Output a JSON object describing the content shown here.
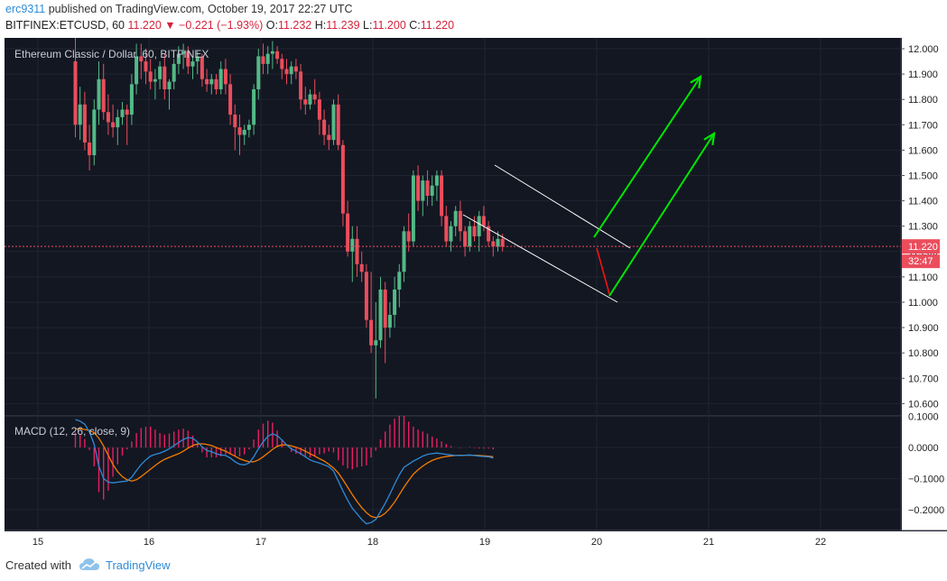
{
  "header": {
    "user": "erc9311",
    "published": "published on TradingView.com, October 19, 2017 22:27 UTC",
    "symbol": "BITFINEX:ETCUSD, 60",
    "last": "11.220",
    "change": "−0.221 (−1.93%)",
    "o_label": "O:",
    "o": "11.232",
    "h_label": "H:",
    "h": "11.239",
    "l_label": "L:",
    "l": "11.200",
    "c_label": "C:",
    "c": "11.220"
  },
  "footer": {
    "created": "Created with",
    "brand": "TradingView"
  },
  "colors": {
    "background": "#131722",
    "up": "#53b987",
    "down": "#eb4d5c",
    "macd_line": "#2e8bd8",
    "signal_line": "#f57c00",
    "hist": "#e91e63",
    "arrow": "#00e600",
    "channel": "#ffffff",
    "price_tag": "#eb4d5c"
  },
  "chart_data": [
    {
      "type": "candlestick",
      "title": "Ethereum Classic / Dollar, 60, BITFINEX",
      "x_ticks": [
        "15",
        "16",
        "17",
        "18",
        "19",
        "20",
        "21",
        "22"
      ],
      "y_ticks": [
        "12.000",
        "11.900",
        "11.800",
        "11.700",
        "11.600",
        "11.500",
        "11.400",
        "11.300",
        "11.200",
        "11.100",
        "11.000",
        "10.900",
        "10.800",
        "10.700",
        "10.600"
      ],
      "ylim": [
        10.57,
        12.03
      ],
      "last_price_label": "11.220",
      "countdown_label": "32:47",
      "ohlc": [
        [
          11.95,
          12.05,
          11.65,
          11.7
        ],
        [
          11.7,
          11.85,
          11.64,
          11.78
        ],
        [
          11.78,
          11.83,
          11.6,
          11.63
        ],
        [
          11.63,
          11.7,
          11.52,
          11.58
        ],
        [
          11.58,
          11.8,
          11.54,
          11.76
        ],
        [
          11.76,
          11.95,
          11.7,
          11.88
        ],
        [
          11.88,
          11.94,
          11.72,
          11.75
        ],
        [
          11.75,
          11.82,
          11.66,
          11.71
        ],
        [
          11.71,
          11.78,
          11.65,
          11.69
        ],
        [
          11.69,
          11.76,
          11.62,
          11.73
        ],
        [
          11.73,
          11.79,
          11.7,
          11.76
        ],
        [
          11.76,
          11.78,
          11.62,
          11.74
        ],
        [
          11.74,
          11.9,
          11.7,
          11.86
        ],
        [
          11.86,
          12.02,
          11.82,
          11.97
        ],
        [
          11.97,
          12.02,
          11.88,
          11.95
        ],
        [
          11.95,
          12.0,
          11.86,
          11.91
        ],
        [
          11.91,
          11.96,
          11.84,
          11.87
        ],
        [
          11.87,
          11.92,
          11.8,
          11.88
        ],
        [
          11.88,
          11.95,
          11.84,
          11.93
        ],
        [
          11.93,
          11.98,
          11.8,
          11.84
        ],
        [
          11.84,
          11.88,
          11.76,
          11.87
        ],
        [
          11.87,
          11.96,
          11.84,
          11.94
        ],
        [
          11.94,
          12.01,
          11.9,
          11.98
        ],
        [
          11.98,
          12.02,
          11.92,
          11.99
        ],
        [
          11.99,
          12.01,
          11.9,
          11.93
        ],
        [
          11.93,
          11.97,
          11.88,
          11.95
        ],
        [
          11.95,
          11.99,
          11.9,
          11.97
        ],
        [
          11.97,
          11.98,
          11.85,
          11.88
        ],
        [
          11.88,
          11.92,
          11.83,
          11.86
        ],
        [
          11.86,
          11.9,
          11.82,
          11.88
        ],
        [
          11.88,
          11.9,
          11.82,
          11.84
        ],
        [
          11.84,
          11.95,
          11.82,
          11.92
        ],
        [
          11.92,
          11.96,
          11.82,
          11.86
        ],
        [
          11.86,
          11.9,
          11.7,
          11.74
        ],
        [
          11.74,
          11.78,
          11.6,
          11.69
        ],
        [
          11.69,
          11.74,
          11.58,
          11.66
        ],
        [
          11.66,
          11.7,
          11.62,
          11.68
        ],
        [
          11.68,
          11.72,
          11.65,
          11.7
        ],
        [
          11.7,
          11.86,
          11.66,
          11.84
        ],
        [
          11.84,
          12.0,
          11.8,
          11.97
        ],
        [
          11.97,
          12.02,
          11.9,
          11.94
        ],
        [
          11.94,
          12.01,
          11.9,
          11.98
        ],
        [
          11.98,
          12.03,
          11.92,
          11.99
        ],
        [
          11.99,
          12.01,
          11.94,
          11.96
        ],
        [
          11.96,
          11.98,
          11.88,
          11.92
        ],
        [
          11.92,
          11.96,
          11.86,
          11.9
        ],
        [
          11.9,
          11.95,
          11.86,
          11.93
        ],
        [
          11.93,
          11.96,
          11.88,
          11.91
        ],
        [
          11.91,
          11.94,
          11.76,
          11.8
        ],
        [
          11.8,
          11.85,
          11.74,
          11.78
        ],
        [
          11.78,
          11.84,
          11.76,
          11.82
        ],
        [
          11.82,
          11.88,
          11.78,
          11.8
        ],
        [
          11.8,
          11.83,
          11.66,
          11.72
        ],
        [
          11.72,
          11.76,
          11.62,
          11.66
        ],
        [
          11.66,
          11.7,
          11.6,
          11.64
        ],
        [
          11.64,
          11.8,
          11.62,
          11.78
        ],
        [
          11.78,
          11.82,
          11.6,
          11.62
        ],
        [
          11.62,
          11.64,
          11.3,
          11.35
        ],
        [
          11.35,
          11.4,
          11.18,
          11.2
        ],
        [
          11.2,
          11.3,
          11.08,
          11.25
        ],
        [
          11.25,
          11.3,
          11.1,
          11.15
        ],
        [
          11.15,
          11.2,
          11.08,
          11.12
        ],
        [
          11.12,
          11.15,
          10.9,
          10.93
        ],
        [
          10.93,
          11.12,
          10.8,
          10.83
        ],
        [
          10.83,
          11.0,
          10.62,
          10.85
        ],
        [
          10.85,
          11.1,
          10.82,
          11.05
        ],
        [
          11.05,
          11.08,
          10.76,
          10.9
        ],
        [
          10.9,
          11.0,
          10.86,
          10.95
        ],
        [
          10.95,
          11.1,
          10.9,
          11.05
        ],
        [
          11.05,
          11.15,
          10.98,
          11.12
        ],
        [
          11.12,
          11.3,
          11.08,
          11.28
        ],
        [
          11.28,
          11.35,
          11.2,
          11.24
        ],
        [
          11.24,
          11.52,
          11.22,
          11.5
        ],
        [
          11.5,
          11.54,
          11.36,
          11.4
        ],
        [
          11.4,
          11.5,
          11.34,
          11.48
        ],
        [
          11.48,
          11.52,
          11.38,
          11.42
        ],
        [
          11.42,
          11.5,
          11.38,
          11.46
        ],
        [
          11.46,
          11.52,
          11.4,
          11.5
        ],
        [
          11.5,
          11.52,
          11.3,
          11.34
        ],
        [
          11.34,
          11.38,
          11.22,
          11.24
        ],
        [
          11.24,
          11.32,
          11.2,
          11.3
        ],
        [
          11.3,
          11.38,
          11.26,
          11.36
        ],
        [
          11.36,
          11.4,
          11.24,
          11.28
        ],
        [
          11.28,
          11.3,
          11.18,
          11.22
        ],
        [
          11.22,
          11.32,
          11.2,
          11.3
        ],
        [
          11.3,
          11.34,
          11.24,
          11.26
        ],
        [
          11.26,
          11.36,
          11.2,
          11.34
        ],
        [
          11.34,
          11.38,
          11.28,
          11.3
        ],
        [
          11.3,
          11.32,
          11.22,
          11.24
        ],
        [
          11.24,
          11.26,
          11.18,
          11.22
        ],
        [
          11.22,
          11.28,
          11.2,
          11.25
        ],
        [
          11.25,
          11.27,
          11.2,
          11.22
        ]
      ]
    },
    {
      "type": "line",
      "title": "MACD (12, 26, close, 9)",
      "y_ticks": [
        "0.1000",
        "0.0000",
        "−0.1000",
        "−0.2000"
      ],
      "ylim": [
        -0.255,
        0.105
      ],
      "series": [
        {
          "values": [
            0.09,
            0.085,
            0.075,
            0.05,
            0.01,
            -0.06,
            -0.1,
            -0.112,
            -0.114,
            -0.112,
            -0.11,
            -0.108,
            -0.096,
            -0.075,
            -0.055,
            -0.04,
            -0.028,
            -0.022,
            -0.018,
            -0.012,
            -0.004,
            0.006,
            0.016,
            0.026,
            0.032,
            0.03,
            0.018,
            0.002,
            -0.01,
            -0.014,
            -0.02,
            -0.024,
            -0.026,
            -0.034,
            -0.046,
            -0.054,
            -0.056,
            -0.05,
            -0.03,
            -0.004,
            0.018,
            0.036,
            0.044,
            0.038,
            0.024,
            0.008,
            -0.004,
            -0.012,
            -0.02,
            -0.03,
            -0.04,
            -0.046,
            -0.05,
            -0.056,
            -0.062,
            -0.076,
            -0.108,
            -0.14,
            -0.17,
            -0.196,
            -0.214,
            -0.232,
            -0.246,
            -0.242,
            -0.232,
            -0.206,
            -0.18,
            -0.15,
            -0.118,
            -0.088,
            -0.064,
            -0.054,
            -0.044,
            -0.036,
            -0.028,
            -0.022,
            -0.02,
            -0.018,
            -0.02,
            -0.022,
            -0.024,
            -0.026,
            -0.026,
            -0.025,
            -0.024,
            -0.026,
            -0.028,
            -0.029,
            -0.03,
            -0.034
          ]
        },
        {
          "values": [
            0.06,
            0.06,
            0.058,
            0.055,
            0.048,
            0.03,
            0.005,
            -0.025,
            -0.055,
            -0.078,
            -0.094,
            -0.104,
            -0.108,
            -0.104,
            -0.094,
            -0.082,
            -0.07,
            -0.058,
            -0.047,
            -0.038,
            -0.032,
            -0.026,
            -0.02,
            -0.012,
            -0.002,
            0.006,
            0.011,
            0.012,
            0.01,
            0.006,
            0.0,
            -0.006,
            -0.012,
            -0.02,
            -0.028,
            -0.036,
            -0.042,
            -0.046,
            -0.046,
            -0.04,
            -0.03,
            -0.018,
            -0.006,
            0.004,
            0.008,
            0.008,
            0.005,
            0.001,
            -0.005,
            -0.012,
            -0.02,
            -0.028,
            -0.036,
            -0.044,
            -0.054,
            -0.066,
            -0.082,
            -0.104,
            -0.128,
            -0.152,
            -0.174,
            -0.194,
            -0.21,
            -0.222,
            -0.226,
            -0.222,
            -0.212,
            -0.196,
            -0.176,
            -0.152,
            -0.128,
            -0.106,
            -0.086,
            -0.072,
            -0.06,
            -0.05,
            -0.042,
            -0.036,
            -0.032,
            -0.029,
            -0.027,
            -0.026,
            -0.025,
            -0.025,
            -0.025,
            -0.025,
            -0.026,
            -0.027,
            -0.028,
            -0.03
          ]
        }
      ]
    }
  ]
}
